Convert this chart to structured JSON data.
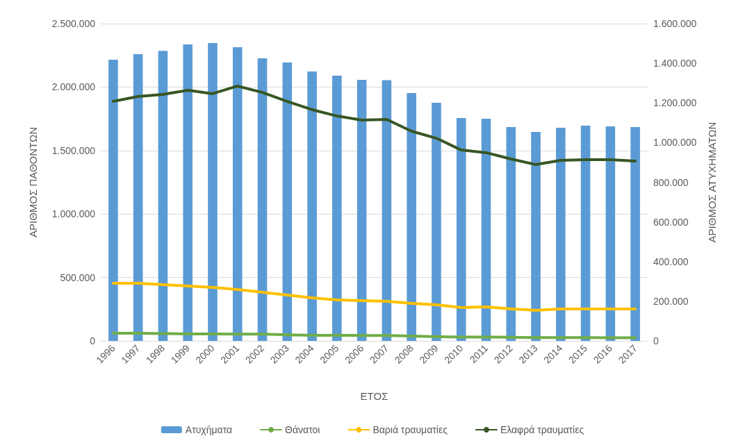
{
  "chart_data": {
    "type": "bar",
    "xlabel": "ΕΤΟΣ",
    "ylabel": "ΑΡΙΘΜΟΣ ΠΑΘΟΝΤΩΝ",
    "y2label": "ΑΡΙΘΜΟΣ ΑΤΥΧΗΜΑΤΩΝ",
    "categories": [
      "1996",
      "1997",
      "1998",
      "1999",
      "2000",
      "2001",
      "2002",
      "2003",
      "2004",
      "2005",
      "2006",
      "2007",
      "2008",
      "2009",
      "2010",
      "2011",
      "2012",
      "2013",
      "2014",
      "2015",
      "2016",
      "2017"
    ],
    "series": [
      {
        "name": "Ατυχήματα",
        "axis": "y2",
        "color": "#5b9bd5",
        "values": [
          1418000,
          1446000,
          1463000,
          1495000,
          1502000,
          1481000,
          1425000,
          1404000,
          1358000,
          1337000,
          1316000,
          1315000,
          1250000,
          1201000,
          1124000,
          1120000,
          1078000,
          1054000,
          1075000,
          1085000,
          1082000,
          1078000
        ]
      },
      {
        "name": "Θάνατοι",
        "type": "line",
        "color": "#70ad47",
        "values": [
          60000,
          60000,
          58000,
          55000,
          55000,
          54000,
          53000,
          48000,
          44000,
          44000,
          43000,
          42000,
          38000,
          33000,
          30000,
          30000,
          29000,
          26000,
          26000,
          26000,
          25000,
          25000
        ]
      },
      {
        "name": "Βαριά τραυματίες",
        "type": "line",
        "color": "#ffc000",
        "values": [
          454000,
          454000,
          443000,
          432000,
          421000,
          405000,
          383000,
          361000,
          339000,
          323000,
          317000,
          312000,
          295000,
          284000,
          263000,
          268000,
          252000,
          241000,
          252000,
          252000,
          252000,
          252000
        ]
      },
      {
        "name": "Ελαφρά τραυματίες",
        "type": "line",
        "color": "#375623",
        "values": [
          1887000,
          1926000,
          1942000,
          1975000,
          1948000,
          2008000,
          1958000,
          1887000,
          1822000,
          1772000,
          1740000,
          1745000,
          1652000,
          1597000,
          1504000,
          1483000,
          1433000,
          1389000,
          1422000,
          1428000,
          1428000,
          1417000
        ]
      }
    ],
    "ylim": [
      0,
      2500000
    ],
    "yticks": [
      {
        "value": 0,
        "label": "0"
      },
      {
        "value": 500000,
        "label": "500.000"
      },
      {
        "value": 1000000,
        "label": "1.000.000"
      },
      {
        "value": 1500000,
        "label": "1.500.000"
      },
      {
        "value": 2000000,
        "label": "2.000.000"
      },
      {
        "value": 2500000,
        "label": "2.500.000"
      }
    ],
    "y2lim": [
      0,
      1600000
    ],
    "y2ticks": [
      {
        "value": 0,
        "label": "0"
      },
      {
        "value": 200000,
        "label": "200.000"
      },
      {
        "value": 400000,
        "label": "400.000"
      },
      {
        "value": 600000,
        "label": "600.000"
      },
      {
        "value": 800000,
        "label": "800.000"
      },
      {
        "value": 1000000,
        "label": "1.000.000"
      },
      {
        "value": 1200000,
        "label": "1.200.000"
      },
      {
        "value": 1400000,
        "label": "1.400.000"
      },
      {
        "value": 1600000,
        "label": "1.600.000"
      }
    ],
    "grid": "y",
    "legend": "bottom",
    "marker": "none",
    "line_style": "solid"
  }
}
